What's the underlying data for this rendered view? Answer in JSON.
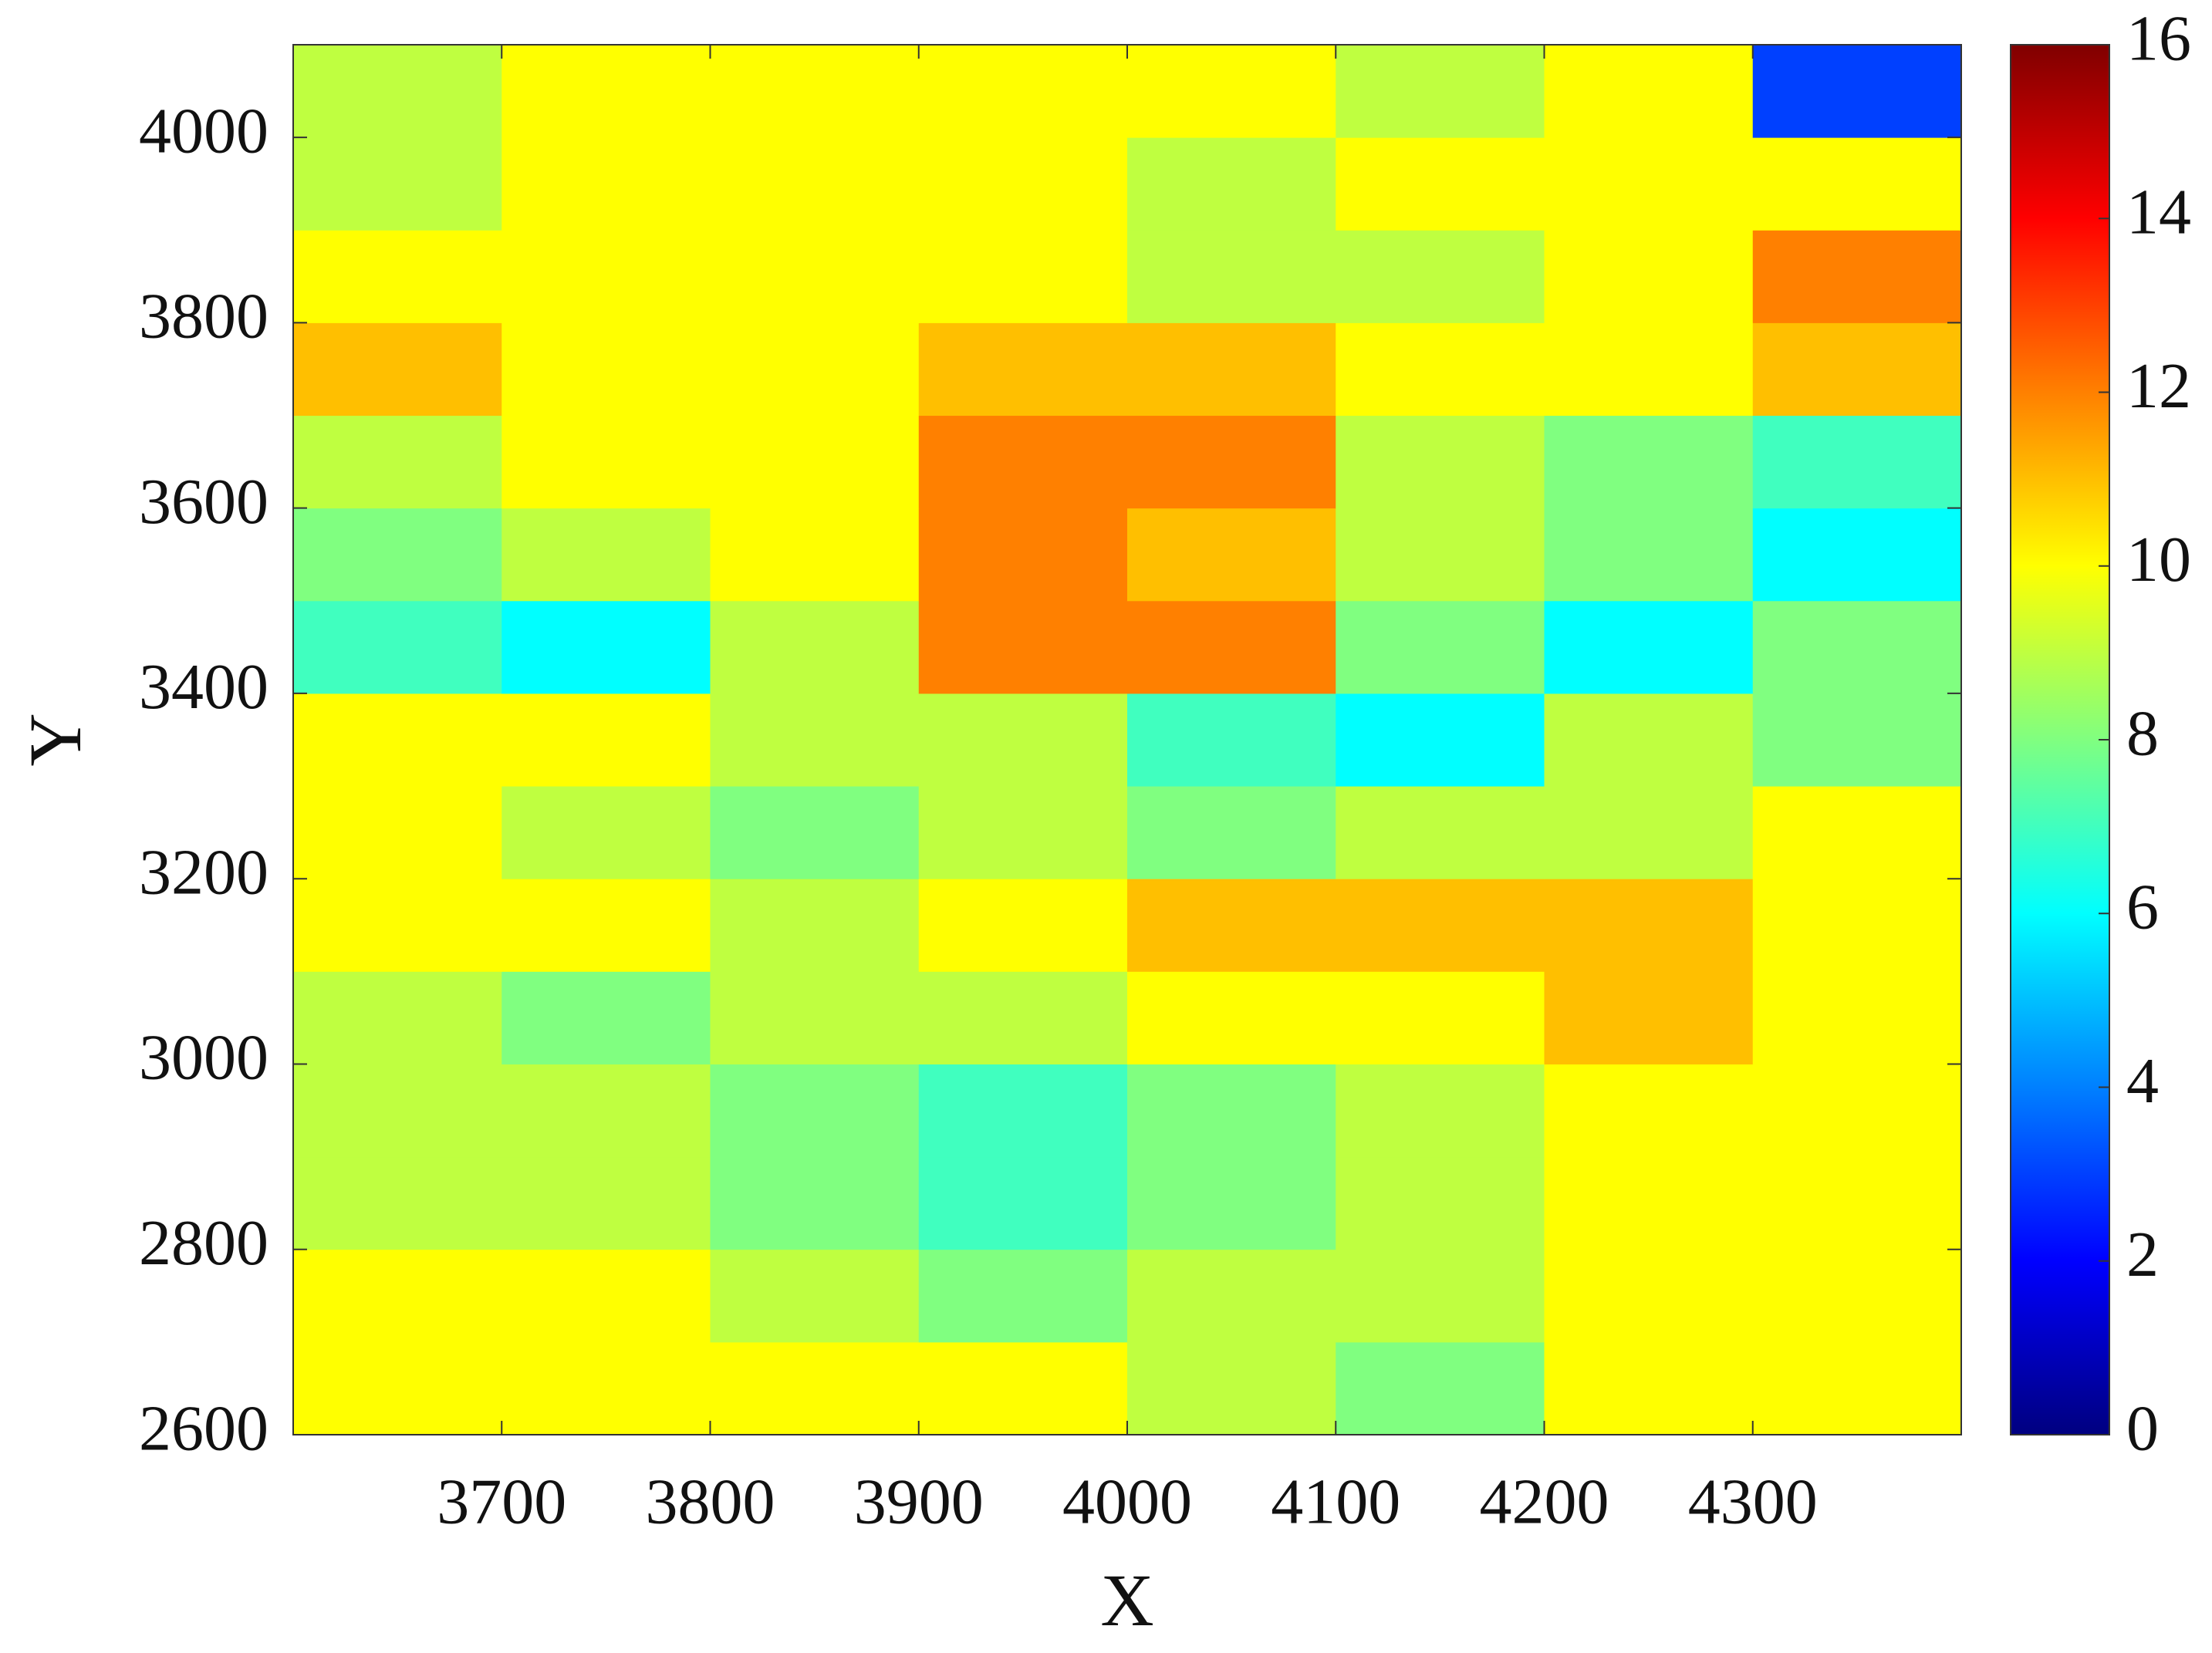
{
  "chart_data": {
    "type": "heatmap",
    "x_label": "X",
    "y_label": "Y",
    "x": [
      3650,
      3750,
      3850,
      3950,
      4050,
      4150,
      4250,
      4350
    ],
    "y": [
      2650,
      2750,
      2850,
      2950,
      3050,
      3150,
      3250,
      3350,
      3450,
      3550,
      3650,
      3750,
      3850,
      3950,
      4050
    ],
    "z": [
      [
        10,
        10,
        10,
        10,
        9,
        8,
        10,
        10
      ],
      [
        10,
        10,
        9,
        8,
        9,
        9,
        10,
        10
      ],
      [
        9,
        9,
        8,
        7,
        8,
        9,
        10,
        10
      ],
      [
        9,
        9,
        8,
        7,
        8,
        9,
        10,
        10
      ],
      [
        9,
        8,
        9,
        9,
        10,
        10,
        11,
        10
      ],
      [
        10,
        10,
        9,
        10,
        11,
        11,
        11,
        10
      ],
      [
        10,
        9,
        8,
        9,
        8,
        9,
        9,
        10
      ],
      [
        10,
        10,
        9,
        9,
        7,
        6,
        9,
        8
      ],
      [
        7,
        6,
        9,
        12,
        12,
        8,
        6,
        8
      ],
      [
        8,
        9,
        10,
        12,
        11,
        9,
        8,
        6
      ],
      [
        9,
        10,
        10,
        12,
        12,
        9,
        8,
        7
      ],
      [
        11,
        10,
        10,
        11,
        11,
        10,
        10,
        11
      ],
      [
        10,
        10,
        10,
        10,
        9,
        9,
        10,
        12
      ],
      [
        9,
        10,
        10,
        10,
        9,
        10,
        10,
        10
      ],
      [
        9,
        10,
        10,
        10,
        10,
        9,
        10,
        3
      ]
    ],
    "xlim": [
      3600,
      4400
    ],
    "ylim": [
      2600,
      4100
    ],
    "xticks": [
      3700,
      3800,
      3900,
      4000,
      4100,
      4200,
      4300
    ],
    "yticks": [
      2600,
      2800,
      3000,
      3200,
      3400,
      3600,
      3800,
      4000
    ],
    "colormap": "jet",
    "clim": [
      0,
      16
    ],
    "cticks": [
      0,
      2,
      4,
      6,
      8,
      10,
      12,
      14,
      16
    ]
  }
}
